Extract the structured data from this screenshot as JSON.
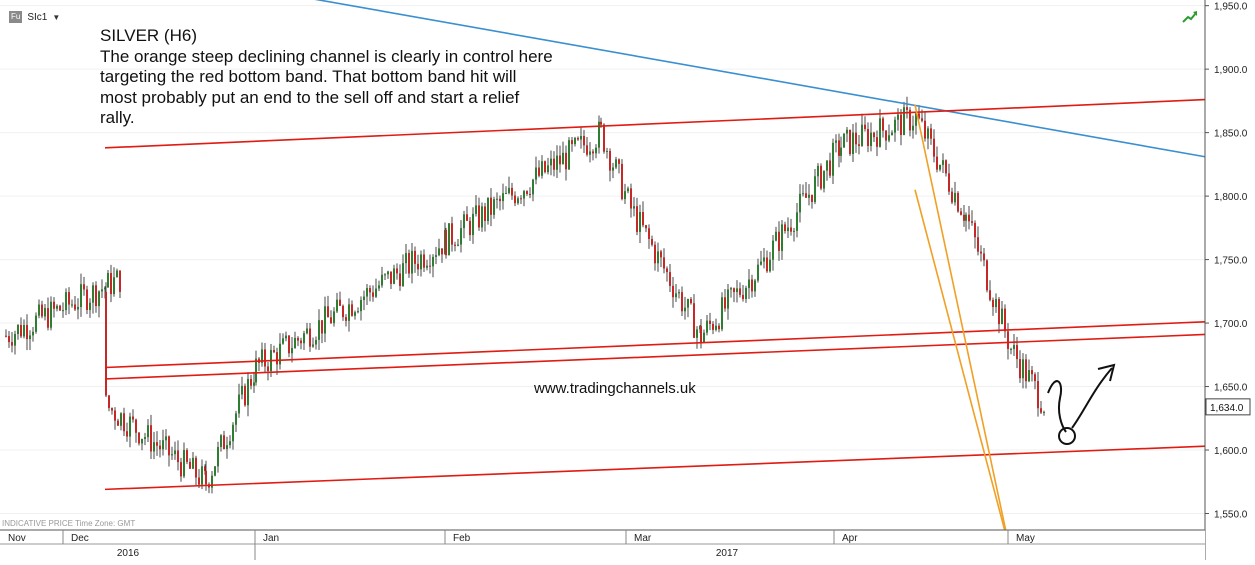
{
  "header": {
    "instrument_badge": "Fu",
    "symbol": "SIc1",
    "dropdown_icon": "caret-down-icon"
  },
  "annotation": {
    "title": "SILVER (H6)",
    "lines": [
      "The orange steep declining channel is clearly in control here",
      "targeting the red bottom band. That bottom band hit will",
      "most probably put an end to the sell off and start a relief",
      "rally."
    ]
  },
  "watermark": "www.tradingchannels.uk",
  "footer_note": "INDICATIVE PRICE   Time Zone: GMT",
  "trend_icon": "trend-up-icon",
  "colors": {
    "up": "#2e7d32",
    "down": "#c62828",
    "channel_red": "#e01b12",
    "channel_orange": "#f0a024",
    "trend_blue": "#3a8fd0",
    "grid": "#f0f0f0"
  },
  "chart_data": {
    "type": "candlestick",
    "price_axis": {
      "ticks": [
        1550,
        1600,
        1650,
        1700,
        1750,
        1800,
        1850,
        1900,
        1950
      ],
      "tick_labels": [
        "1,550.0",
        "1,600.0",
        "1,650.0",
        "1,700.0",
        "1,750.0",
        "1,800.0",
        "1,850.0",
        "1,900.0",
        "1,950.0"
      ],
      "range": [
        1522,
        1961
      ],
      "last_price": 1634.0,
      "last_price_label": "1,634.0"
    },
    "time_axis": {
      "months": [
        "Nov",
        "Dec",
        "Jan",
        "Feb",
        "Mar",
        "Apr",
        "May"
      ],
      "years": [
        "2016",
        "2017"
      ]
    },
    "key_prices": [
      {
        "time": "Nov",
        "value": 1690
      },
      {
        "time": "late Nov",
        "value": 1735
      },
      {
        "time": "Dec",
        "value": 1635
      },
      {
        "time": "mid Dec",
        "value": 1575
      },
      {
        "time": "Jan",
        "value": 1665
      },
      {
        "time": "Feb",
        "value": 1765
      },
      {
        "time": "late Feb",
        "value": 1850
      },
      {
        "time": "Mar",
        "value": 1790
      },
      {
        "time": "mid Mar",
        "value": 1690
      },
      {
        "time": "late Mar",
        "value": 1745
      },
      {
        "time": "Apr",
        "value": 1840
      },
      {
        "time": "mid Apr",
        "value": 1862
      },
      {
        "time": "late Apr",
        "value": 1785
      },
      {
        "time": "May",
        "value": 1680
      },
      {
        "time": "early May",
        "value": 1634
      }
    ],
    "lines": [
      {
        "name": "trend-blue",
        "color": "blue",
        "from": {
          "time": "Oct",
          "value": 1985
        },
        "to": {
          "time": "end",
          "value": 1831
        }
      },
      {
        "name": "upper-red-band",
        "color": "red",
        "from": {
          "time": "Dec",
          "value": 1838
        },
        "to": {
          "time": "end",
          "value": 1876
        }
      },
      {
        "name": "middle-red-band-1",
        "color": "red",
        "from": {
          "time": "Dec",
          "value": 1665
        },
        "to": {
          "time": "end",
          "value": 1701
        }
      },
      {
        "name": "middle-red-band-2",
        "color": "red",
        "from": {
          "time": "Dec",
          "value": 1656
        },
        "to": {
          "time": "end",
          "value": 1691
        }
      },
      {
        "name": "bottom-red-band",
        "color": "red",
        "from": {
          "time": "Dec",
          "value": 1569
        },
        "to": {
          "time": "end",
          "value": 1603
        }
      },
      {
        "name": "orange-channel-upper",
        "color": "orange",
        "from": {
          "time": "mid Apr",
          "value": 1872
        },
        "to": {
          "time": "May",
          "value": 1521
        }
      },
      {
        "name": "orange-channel-lower",
        "color": "orange",
        "from": {
          "time": "mid Apr",
          "value": 1805
        },
        "to": {
          "time": "May",
          "value": 1521
        }
      }
    ]
  }
}
